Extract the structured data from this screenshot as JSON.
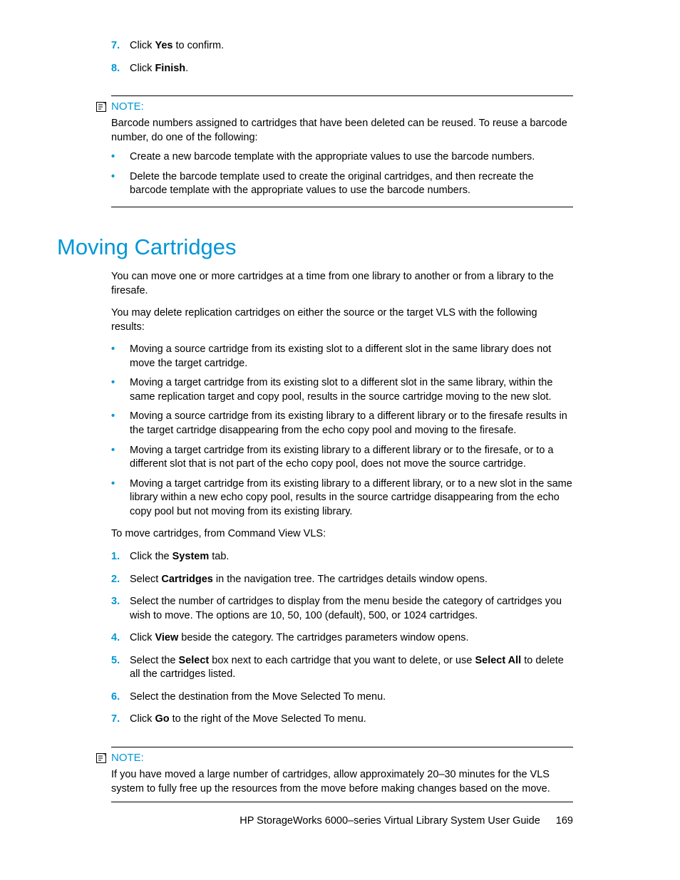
{
  "colors": {
    "accent": "#0096d6",
    "text": "#000000",
    "background": "#ffffff"
  },
  "topSteps": [
    {
      "num": "7.",
      "prefix": "Click ",
      "bold": "Yes",
      "suffix": " to confirm."
    },
    {
      "num": "8.",
      "prefix": "Click ",
      "bold": "Finish",
      "suffix": "."
    }
  ],
  "note1": {
    "label": "NOTE:",
    "intro": "Barcode numbers assigned to cartridges that have been deleted can be reused. To reuse a barcode number, do one of the following:",
    "bullets": [
      "Create a new barcode template with the appropriate values to use the barcode numbers.",
      "Delete the barcode template used to create the original cartridges, and then recreate the barcode template with the appropriate values to use the barcode numbers."
    ]
  },
  "heading": "Moving Cartridges",
  "intro1": "You can move one or more cartridges at a time from one library to another or from a library to the firesafe.",
  "intro2": "You may delete replication cartridges on either the source or the target VLS with the following results:",
  "resultsBullets": [
    "Moving a source cartridge from its existing slot to a different slot in the same library does not move the target cartridge.",
    "Moving a target cartridge from its existing slot to a different slot in the same library, within the same replication target and copy pool, results in the source cartridge moving to the new slot.",
    "Moving a source cartridge from its existing library to a different library or to the firesafe results in the target cartridge disappearing from the echo copy pool and moving to the firesafe.",
    "Moving a target cartridge from its existing library to a different library or to the firesafe, or to a different slot that is not part of the echo copy pool, does not move the source cartridge.",
    "Moving a target cartridge from its existing library to a different library, or to a new slot in the same library within a new echo copy pool, results in the source cartridge disappearing from the echo copy pool but not moving from its existing library."
  ],
  "moveIntro": "To move cartridges, from Command View VLS:",
  "moveSteps": [
    {
      "num": "1.",
      "parts": [
        {
          "t": "Click the "
        },
        {
          "t": "System",
          "b": true
        },
        {
          "t": " tab."
        }
      ]
    },
    {
      "num": "2.",
      "parts": [
        {
          "t": "Select "
        },
        {
          "t": "Cartridges",
          "b": true
        },
        {
          "t": " in the navigation tree. The cartridges details window opens."
        }
      ]
    },
    {
      "num": "3.",
      "parts": [
        {
          "t": "Select the number of cartridges to display from the menu beside the category of cartridges you wish to move. The options are 10, 50, 100 (default), 500, or 1024 cartridges."
        }
      ]
    },
    {
      "num": "4.",
      "parts": [
        {
          "t": "Click "
        },
        {
          "t": "View",
          "b": true
        },
        {
          "t": " beside the category. The cartridges parameters window opens."
        }
      ]
    },
    {
      "num": "5.",
      "parts": [
        {
          "t": "Select the "
        },
        {
          "t": "Select",
          "b": true
        },
        {
          "t": " box next to each cartridge that you want to delete, or use "
        },
        {
          "t": "Select All",
          "b": true
        },
        {
          "t": " to delete all the cartridges listed."
        }
      ]
    },
    {
      "num": "6.",
      "parts": [
        {
          "t": "Select the destination from the Move Selected To menu."
        }
      ]
    },
    {
      "num": "7.",
      "parts": [
        {
          "t": "Click "
        },
        {
          "t": "Go",
          "b": true
        },
        {
          "t": " to the right of the Move Selected To menu."
        }
      ]
    }
  ],
  "note2": {
    "label": "NOTE:",
    "text": "If you have moved a large number of cartridges, allow approximately 20–30 minutes for the VLS system to fully free up the resources from the move before making changes based on the move."
  },
  "footer": {
    "title": "HP StorageWorks 6000–series Virtual Library System User Guide",
    "page": "169"
  }
}
